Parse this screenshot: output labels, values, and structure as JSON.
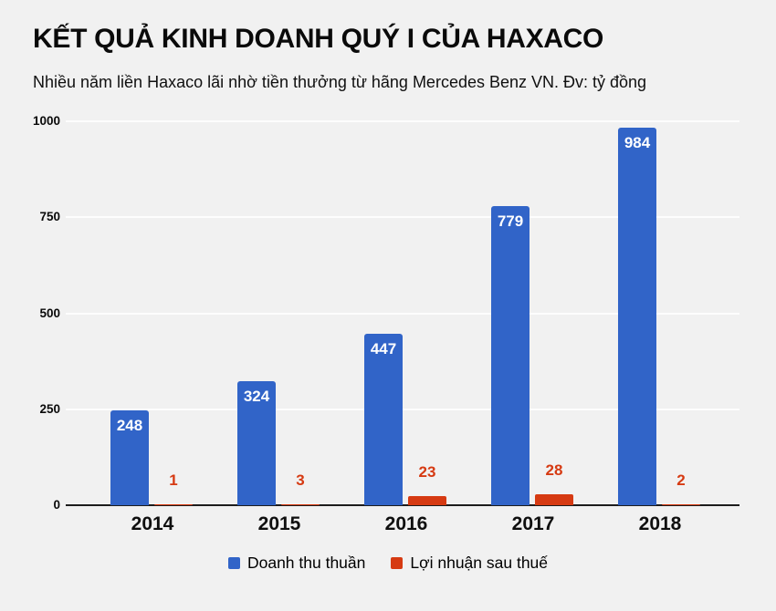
{
  "header": {
    "title": "KẾT QUẢ KINH DOANH QUÝ I CỦA HAXACO",
    "subtitle": "Nhiều năm liền Haxaco lãi nhờ tiền thưởng từ hãng Mercedes Benz VN. Đv: tỷ đồng"
  },
  "chart_data": {
    "type": "bar",
    "categories": [
      "2014",
      "2015",
      "2016",
      "2017",
      "2018"
    ],
    "series": [
      {
        "name": "Doanh thu thuần",
        "color": "#3164c8",
        "values": [
          248,
          324,
          447,
          779,
          984
        ],
        "value_label_style": "inside-white"
      },
      {
        "name": "Lợi nhuận sau thuế",
        "color": "#d63a12",
        "values": [
          1,
          3,
          23,
          28,
          2
        ],
        "value_label_style": "above-colored"
      }
    ],
    "y_ticks": [
      0,
      250,
      500,
      750,
      1000
    ],
    "ylim": [
      0,
      1000
    ],
    "grid": true,
    "legend_position": "bottom",
    "xlabel": "",
    "ylabel": "",
    "colors": {
      "background": "#f1f1f1",
      "axis_line": "#1c1c1c",
      "gridline": "#fafafa",
      "text": "#0a0a0a"
    }
  }
}
